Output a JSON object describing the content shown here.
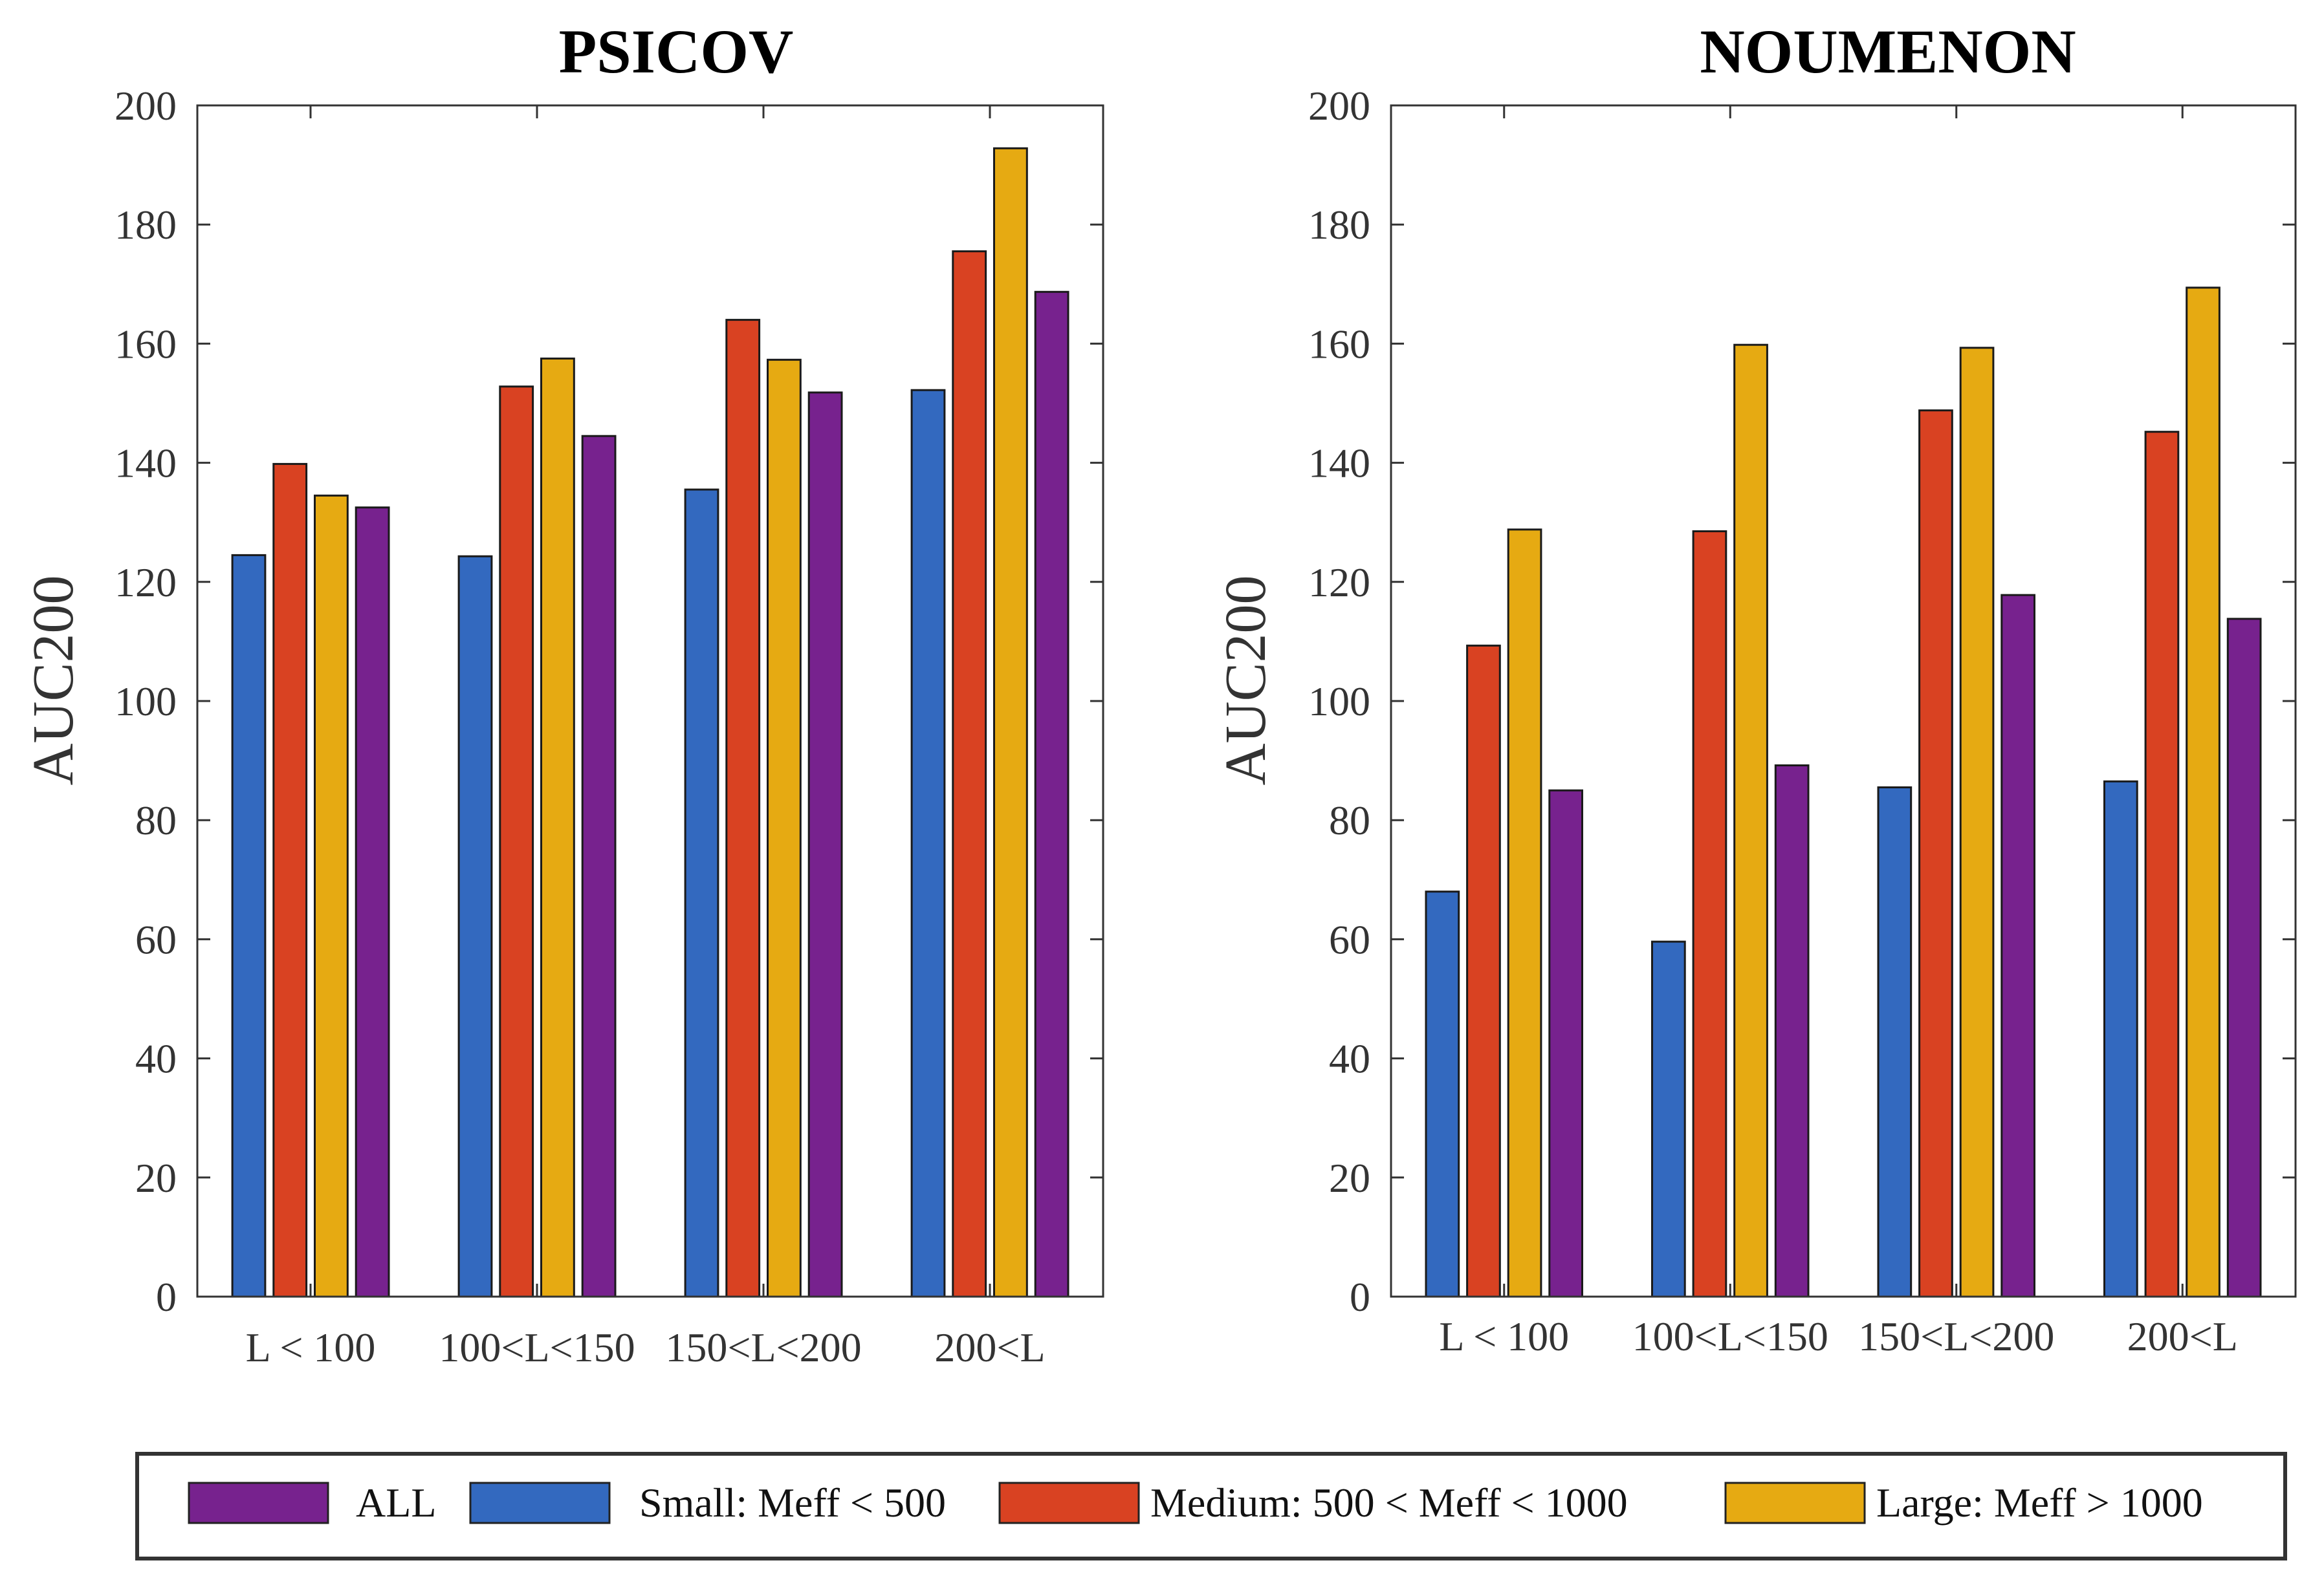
{
  "legend": {
    "entries": [
      {
        "label": "ALL",
        "color": "#77228E"
      },
      {
        "label": "Small: Meff < 500",
        "color": "#3369BF"
      },
      {
        "label": "Medium: 500 < Meff < 1000",
        "color": "#D94222"
      },
      {
        "label": "Large: Meff > 1000",
        "color": "#E6AA12"
      }
    ]
  },
  "chart_data": [
    {
      "type": "bar",
      "title": "PSICOV",
      "xlabel": "",
      "ylabel": "AUC200",
      "ylim": [
        0,
        200
      ],
      "yticks": [
        0,
        20,
        40,
        60,
        80,
        100,
        120,
        140,
        160,
        180,
        200
      ],
      "ytick_labels": [
        "0",
        "20",
        "40",
        "60",
        "80",
        "100",
        "120",
        "140",
        "160",
        "180",
        "200"
      ],
      "grid": false,
      "categories": [
        "L < 100",
        "100<L<150",
        "150<L<200",
        "200<L"
      ],
      "series": [
        {
          "name": "Small: Meff < 500",
          "color": "#3369BF",
          "values": [
            124.5,
            124.3,
            135.5,
            152.2
          ]
        },
        {
          "name": "Medium: 500 < Meff < 1000",
          "color": "#D94222",
          "values": [
            139.8,
            152.8,
            164.0,
            175.5
          ]
        },
        {
          "name": "Large: Meff > 1000",
          "color": "#E6AA12",
          "values": [
            134.5,
            157.5,
            157.3,
            192.8
          ]
        },
        {
          "name": "ALL",
          "color": "#77228E",
          "values": [
            132.5,
            144.5,
            151.8,
            168.7
          ]
        }
      ]
    },
    {
      "type": "bar",
      "title": "NOUMENON",
      "xlabel": "",
      "ylabel": "AUC200",
      "ylim": [
        0,
        200
      ],
      "yticks": [
        0,
        20,
        40,
        60,
        80,
        100,
        120,
        140,
        160,
        180,
        200
      ],
      "ytick_labels": [
        "0",
        "20",
        "40",
        "60",
        "80",
        "100",
        "120",
        "140",
        "160",
        "180",
        "200"
      ],
      "grid": false,
      "categories": [
        "L < 100",
        "100<L<150",
        "150<L<200",
        "200<L"
      ],
      "series": [
        {
          "name": "Small: Meff < 500",
          "color": "#3369BF",
          "values": [
            68.0,
            59.6,
            85.5,
            86.5
          ]
        },
        {
          "name": "Medium: 500 < Meff < 1000",
          "color": "#D94222",
          "values": [
            109.3,
            128.5,
            148.8,
            145.2
          ]
        },
        {
          "name": "Large: Meff > 1000",
          "color": "#E6AA12",
          "values": [
            128.8,
            159.8,
            159.3,
            169.4
          ]
        },
        {
          "name": "ALL",
          "color": "#77228E",
          "values": [
            85.0,
            89.2,
            117.8,
            113.8
          ]
        }
      ]
    }
  ]
}
